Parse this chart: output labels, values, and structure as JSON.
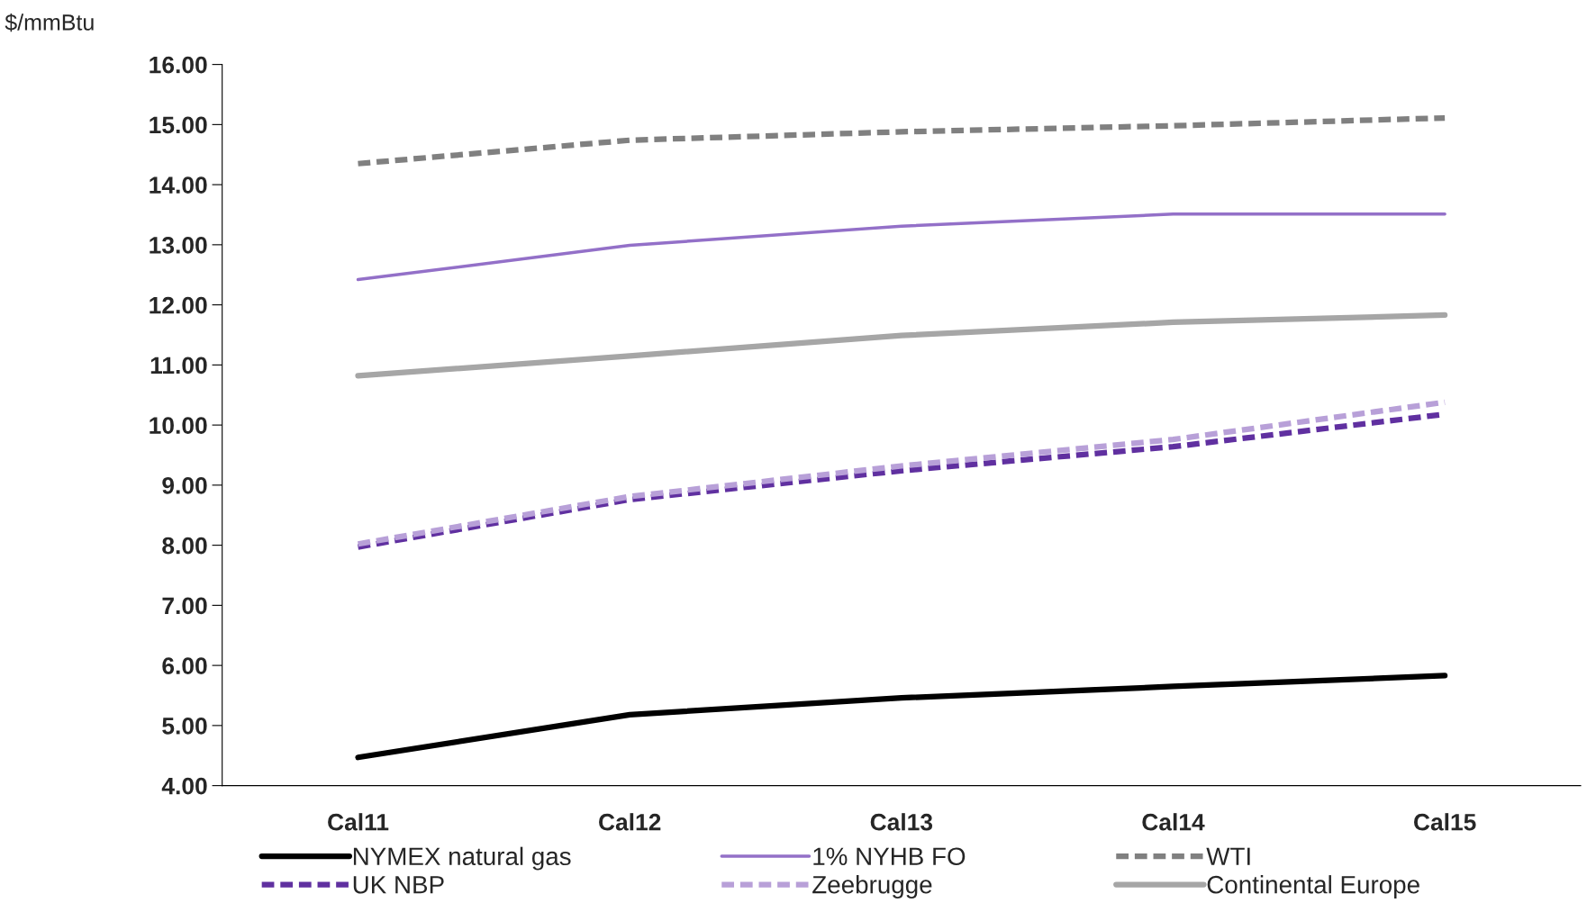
{
  "chart_data": {
    "type": "line",
    "ylabel": "$/mmBtu",
    "categories": [
      "Cal11",
      "Cal12",
      "Cal13",
      "Cal14",
      "Cal15"
    ],
    "series": [
      {
        "name": "NYMEX natural gas",
        "color": "#000000",
        "line_style": "solid",
        "values": [
          4.47,
          5.18,
          5.46,
          5.65,
          5.83
        ]
      },
      {
        "name": "1% NYHB FO",
        "color": "#9370c8",
        "line_style": "solid",
        "values": [
          12.42,
          12.99,
          13.31,
          13.51,
          13.51
        ]
      },
      {
        "name": "WTI",
        "color": "#808080",
        "line_style": "dashed",
        "values": [
          14.35,
          14.74,
          14.88,
          14.98,
          15.11
        ]
      },
      {
        "name": "UK NBP",
        "color": "#6030a0",
        "line_style": "dashed",
        "values": [
          7.97,
          8.76,
          9.24,
          9.64,
          10.18
        ]
      },
      {
        "name": "Zeebrugge",
        "color": "#b8a0d8",
        "line_style": "dashed",
        "values": [
          8.02,
          8.81,
          9.32,
          9.76,
          10.38
        ]
      },
      {
        "name": "Continental Europe",
        "color": "#a6a6a6",
        "line_style": "solid",
        "values": [
          10.82,
          11.15,
          11.49,
          11.71,
          11.83
        ]
      }
    ],
    "ylim": [
      4,
      16
    ],
    "yticks": [
      {
        "value": 4,
        "label": "4.00"
      },
      {
        "value": 5,
        "label": "5.00"
      },
      {
        "value": 6,
        "label": "6.00"
      },
      {
        "value": 7,
        "label": "7.00"
      },
      {
        "value": 8,
        "label": "8.00"
      },
      {
        "value": 9,
        "label": "9.00"
      },
      {
        "value": 10,
        "label": "10.00"
      },
      {
        "value": 11,
        "label": "11.00"
      },
      {
        "value": 12,
        "label": "12.00"
      },
      {
        "value": 13,
        "label": "13.00"
      },
      {
        "value": 14,
        "label": "14.00"
      },
      {
        "value": 15,
        "label": "15.00"
      },
      {
        "value": 16,
        "label": "16.00"
      }
    ],
    "grid": false,
    "legend": "bottom"
  }
}
